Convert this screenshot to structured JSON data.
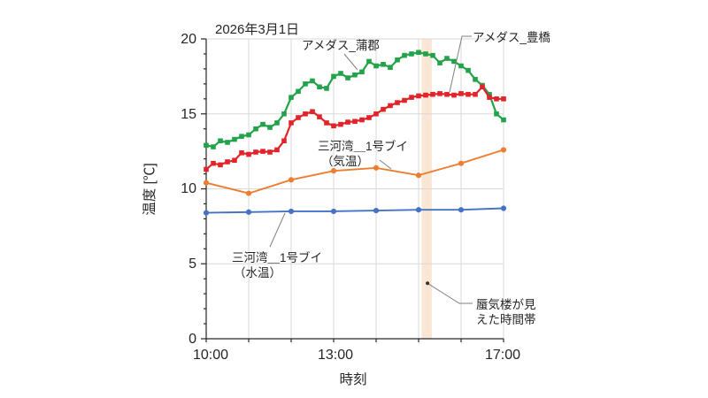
{
  "page": {
    "background": "#ffffff"
  },
  "chart_data": {
    "type": "line",
    "date_label": "2026年3月1日",
    "xlabel": "時刻",
    "ylabel": "温度 [℃]",
    "x_axis": {
      "start_hour": 10,
      "end_hour": 17,
      "tick_labels": [
        "10:00",
        "13:00",
        "17:00"
      ],
      "tick_hours": [
        10,
        13,
        17
      ],
      "gridline_interval_hours": 1
    },
    "y_axis": {
      "min": 0,
      "max": 20,
      "tick_labels": [
        "0",
        "5",
        "10",
        "15",
        "20"
      ],
      "tick_values": [
        0,
        5,
        10,
        15,
        20
      ],
      "minor_tick_interval": 1,
      "grid": true
    },
    "series": [
      {
        "key": "amedas-gamagori",
        "name": "アメダス_蒲郡",
        "color": "#22a34a",
        "marker": "square",
        "interval_minutes": 10,
        "start_hour": 10,
        "values": [
          12.9,
          12.8,
          13.2,
          13.1,
          13.3,
          13.5,
          13.6,
          14.0,
          14.3,
          14.1,
          14.4,
          15.0,
          16.1,
          16.5,
          17.0,
          17.2,
          16.8,
          16.7,
          17.5,
          17.7,
          17.4,
          17.6,
          17.8,
          18.5,
          18.2,
          18.3,
          18.1,
          18.6,
          18.9,
          19.0,
          19.1,
          19.0,
          18.9,
          18.4,
          18.7,
          18.5,
          18.2,
          17.9,
          17.3,
          16.9,
          16.3,
          15.0,
          14.6
        ]
      },
      {
        "key": "amedas-toyohashi",
        "name": "アメダス_豊橋",
        "color": "#e1242a",
        "marker": "square",
        "interval_minutes": 10,
        "start_hour": 10,
        "values": [
          11.3,
          11.7,
          11.6,
          11.8,
          11.9,
          12.4,
          12.3,
          12.45,
          12.5,
          12.45,
          12.6,
          13.2,
          14.4,
          14.75,
          15.0,
          15.15,
          14.8,
          14.4,
          14.2,
          14.3,
          14.45,
          14.5,
          14.6,
          14.75,
          15.0,
          15.3,
          15.55,
          15.75,
          15.9,
          16.1,
          16.2,
          16.25,
          16.3,
          16.35,
          16.3,
          16.25,
          16.35,
          16.3,
          16.3,
          16.8,
          16.1,
          16.0,
          16.0
        ]
      },
      {
        "key": "buoy1-air-temp",
        "name": "三河湾＿1号ブイ（気温）",
        "label_lines": [
          "三河湾＿1号ブイ",
          "（気温）"
        ],
        "color": "#ed7d31",
        "marker": "circle",
        "interval_minutes": 60,
        "start_hour": 10,
        "values": [
          10.4,
          9.7,
          10.6,
          11.2,
          11.4,
          10.9,
          11.7,
          12.6
        ]
      },
      {
        "key": "buoy1-water-temp",
        "name": "三河湾＿1号ブイ（水温）",
        "label_lines": [
          "三河湾＿1号ブイ",
          "（水温）"
        ],
        "color": "#4472c4",
        "marker": "circle",
        "interval_minutes": 60,
        "start_hour": 10,
        "values": [
          8.4,
          8.45,
          8.5,
          8.5,
          8.55,
          8.6,
          8.6,
          8.7
        ]
      }
    ],
    "highlight_band": {
      "from_hour": 15.07,
      "to_hour": 15.31,
      "color": "#fae6d5",
      "label_lines": [
        "蜃気楼が見",
        "えた時間帯"
      ],
      "point": {
        "hour": 15.21,
        "value": 3.7
      }
    },
    "colors": {
      "gridline": "#d9d9d9",
      "axis": "#262626",
      "text": "#262626",
      "leader": "#7f7f7f",
      "annotation_dot": "#333333"
    }
  }
}
